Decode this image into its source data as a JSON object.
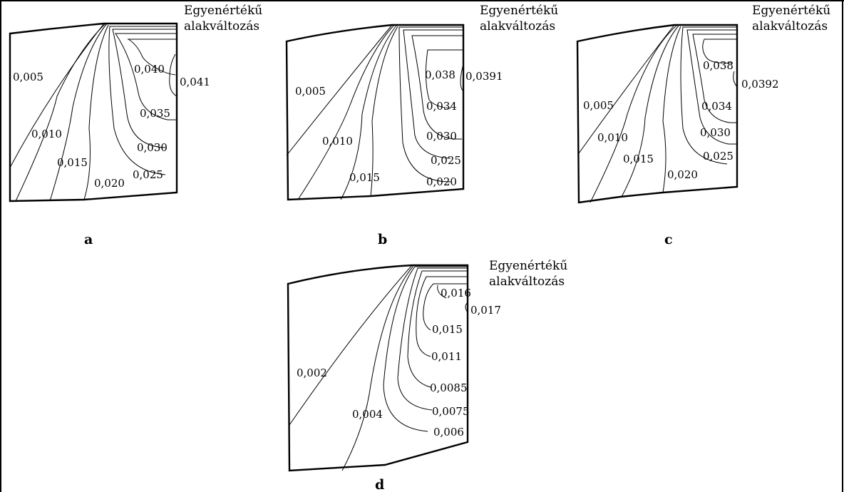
{
  "figure": {
    "panels": [
      {
        "id": "a",
        "title_line1": "Egyenértékű",
        "title_line2": "alakváltozás",
        "letter": "a",
        "labels": [
          "0,005",
          "0,010",
          "0,015",
          "0,020",
          "0,025",
          "0,030",
          "0,035",
          "0,040",
          "0,041"
        ]
      },
      {
        "id": "b",
        "title_line1": "Egyenértékű",
        "title_line2": "alakváltozás",
        "letter": "b",
        "labels": [
          "0,005",
          "0,010",
          "0,015",
          "0,020",
          "0,025",
          "0,030",
          "0,034",
          "0,038",
          "0,0391"
        ]
      },
      {
        "id": "c",
        "title_line1": "Egyenértékű",
        "title_line2": "alakváltozás",
        "letter": "c",
        "labels": [
          "0,005",
          "0,010",
          "0,015",
          "0,020",
          "0,025",
          "0,030",
          "0,034",
          "0,038",
          "0,0392"
        ]
      },
      {
        "id": "d",
        "title_line1": "Egyenértékű",
        "title_line2": "alakváltozás",
        "letter": "d",
        "labels": [
          "0,002",
          "0,004",
          "0,006",
          "0,0075",
          "0,0085",
          "0,011",
          "0,015",
          "0,016",
          "0,017"
        ]
      }
    ]
  }
}
